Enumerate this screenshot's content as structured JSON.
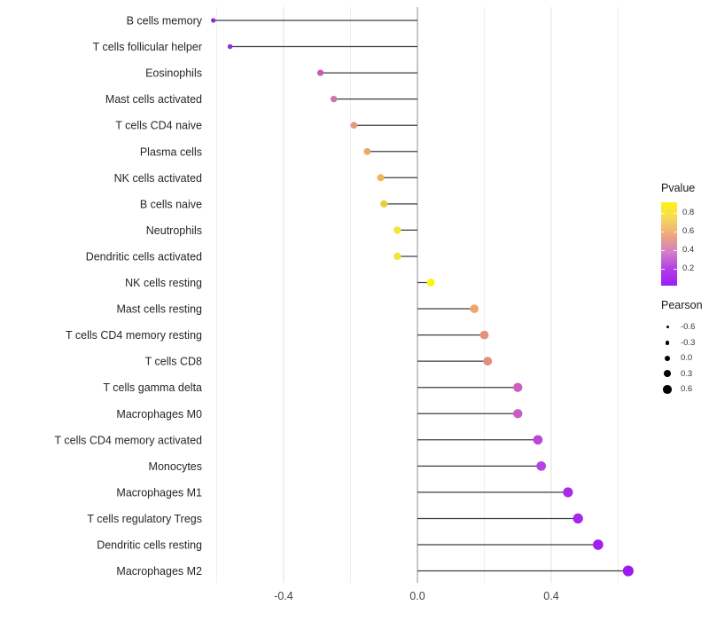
{
  "chart_data": {
    "type": "lollipop",
    "orientation": "horizontal",
    "title": "",
    "xlabel": "",
    "ylabel": "",
    "x_axis": {
      "tick_values": [
        -0.4,
        0.0,
        0.4
      ],
      "tick_labels": [
        "-0.4",
        "0.0",
        "0.4"
      ],
      "minor_grid_values": [
        -0.6,
        -0.2,
        0.2,
        0.6
      ],
      "range": [
        -0.645,
        0.69
      ],
      "grid": "on"
    },
    "points": [
      {
        "label": "B cells memory",
        "pearson": -0.61,
        "pvalue": 0.05,
        "color": "#8C2BE2"
      },
      {
        "label": "T cells follicular helper",
        "pearson": -0.56,
        "pvalue": 0.07,
        "color": "#9130E0"
      },
      {
        "label": "Eosinophils",
        "pearson": -0.29,
        "pvalue": 0.3,
        "color": "#C75AB9"
      },
      {
        "label": "Mast cells activated",
        "pearson": -0.25,
        "pvalue": 0.35,
        "color": "#CD72AD"
      },
      {
        "label": "T cells CD4 naive",
        "pearson": -0.19,
        "pvalue": 0.55,
        "color": "#E29A81"
      },
      {
        "label": "Plasma cells",
        "pearson": -0.15,
        "pvalue": 0.62,
        "color": "#EAAA67"
      },
      {
        "label": "NK cells activated",
        "pearson": -0.11,
        "pvalue": 0.68,
        "color": "#EDBA52"
      },
      {
        "label": "B cells naive",
        "pearson": -0.1,
        "pvalue": 0.73,
        "color": "#F0CA3E"
      },
      {
        "label": "Neutrophils",
        "pearson": -0.06,
        "pvalue": 0.82,
        "color": "#F4E636"
      },
      {
        "label": "Dendritic cells activated",
        "pearson": -0.06,
        "pvalue": 0.82,
        "color": "#F4E636"
      },
      {
        "label": "NK cells resting",
        "pearson": 0.04,
        "pvalue": 0.9,
        "color": "#FAF70D"
      },
      {
        "label": "Mast cells resting",
        "pearson": 0.17,
        "pvalue": 0.6,
        "color": "#EFA56A"
      },
      {
        "label": "T cells CD4 memory resting",
        "pearson": 0.2,
        "pvalue": 0.52,
        "color": "#E89179"
      },
      {
        "label": "T cells CD8",
        "pearson": 0.21,
        "pvalue": 0.5,
        "color": "#E58B80"
      },
      {
        "label": "T cells gamma delta",
        "pearson": 0.3,
        "pvalue": 0.28,
        "color": "#CB5FC2"
      },
      {
        "label": "Macrophages M0",
        "pearson": 0.3,
        "pvalue": 0.27,
        "color": "#C95BC6"
      },
      {
        "label": "T cells CD4 memory activated",
        "pearson": 0.36,
        "pvalue": 0.17,
        "color": "#BB46DE"
      },
      {
        "label": "Monocytes",
        "pearson": 0.37,
        "pvalue": 0.16,
        "color": "#B842E1"
      },
      {
        "label": "Macrophages M1",
        "pearson": 0.45,
        "pvalue": 0.1,
        "color": "#A92BEB"
      },
      {
        "label": "T cells regulatory  Tregs",
        "pearson": 0.48,
        "pvalue": 0.08,
        "color": "#A526EE"
      },
      {
        "label": "Dendritic cells resting",
        "pearson": 0.54,
        "pvalue": 0.06,
        "color": "#A020F0"
      },
      {
        "label": "Macrophages M2",
        "pearson": 0.63,
        "pvalue": 0.04,
        "color": "#9C1BF3"
      }
    ],
    "legends": {
      "pvalue": {
        "title": "Pvalue",
        "tick_labels": [
          "0.8",
          "0.6",
          "0.4",
          "0.2"
        ],
        "tick_values": [
          0.8,
          0.6,
          0.4,
          0.2
        ],
        "bar_domain": [
          0.91,
          0.02
        ],
        "gradient_stops": [
          "#FBF515",
          "#F6D75B",
          "#EDA57F",
          "#D27FC6",
          "#B23EE8",
          "#9E1DF2"
        ],
        "position": "right"
      },
      "pearson": {
        "title": "Pearson",
        "entry_values": [
          -0.6,
          -0.3,
          0.0,
          0.3,
          0.6
        ],
        "entry_labels": [
          "-0.6",
          "-0.3",
          "0.0",
          "0.3",
          "0.6"
        ],
        "dot_color": "#000000",
        "position": "right"
      }
    },
    "style": {
      "background": "#ffffff",
      "stem_color": "#3d3d3d",
      "zero_line_color": "#a3a3a3",
      "grid_major_color": "#e2e2e2",
      "grid_minor_color": "#efefef",
      "y_label_color": "#262626",
      "x_tick_color": "#444444"
    }
  }
}
